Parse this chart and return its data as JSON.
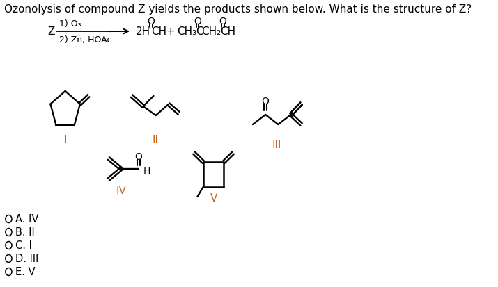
{
  "title_text": "Ozonolysis of compound Z yields the products shown below. What is the structure of Z?",
  "title_color": "#000000",
  "title_fontsize": 11,
  "bg_color": "#ffffff",
  "label_color": "#c8621b",
  "choices": [
    "A. IV",
    "B. II",
    "C. I",
    "D. III",
    "E. V"
  ]
}
